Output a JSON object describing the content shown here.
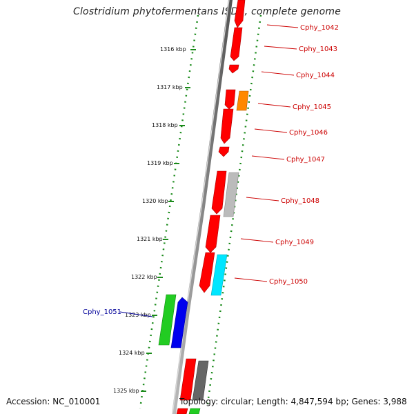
{
  "title": "Clostridium phytofermentans ISDg, complete genome",
  "accession_text": "Accession: NC_010001",
  "summary_text": "Topology: circular; Length: 4,847,594 bp; Genes: 3,988",
  "colors": {
    "red": "#ff0000",
    "orange": "#ff8800",
    "light_gray": "#bbbbbb",
    "dark_gray": "#666666",
    "cyan": "#00e6ff",
    "green": "#22cc22",
    "blue": "#0000ee",
    "forward_label": "#cc0000",
    "reverse_label": "#000099",
    "tick_green": "#1a8a1a",
    "backbone": "#888888"
  },
  "ticks": [
    {
      "label": "1316 kbp"
    },
    {
      "label": "1317 kbp"
    },
    {
      "label": "1318 kbp"
    },
    {
      "label": "1319 kbp"
    },
    {
      "label": "1320 kbp"
    },
    {
      "label": "1321 kbp"
    },
    {
      "label": "1322 kbp"
    },
    {
      "label": "1323 kbp"
    },
    {
      "label": "1324 kbp"
    },
    {
      "label": "1325 kbp"
    }
  ],
  "gene_labels": [
    {
      "text": "Cphy_1042",
      "strand": "forward"
    },
    {
      "text": "Cphy_1043",
      "strand": "forward"
    },
    {
      "text": "Cphy_1044",
      "strand": "forward"
    },
    {
      "text": "Cphy_1045",
      "strand": "forward"
    },
    {
      "text": "Cphy_1046",
      "strand": "forward"
    },
    {
      "text": "Cphy_1047",
      "strand": "forward"
    },
    {
      "text": "Cphy_1048",
      "strand": "forward"
    },
    {
      "text": "Cphy_1049",
      "strand": "forward"
    },
    {
      "text": "Cphy_1050",
      "strand": "forward"
    },
    {
      "text": "Cphy_1051",
      "strand": "reverse"
    }
  ]
}
